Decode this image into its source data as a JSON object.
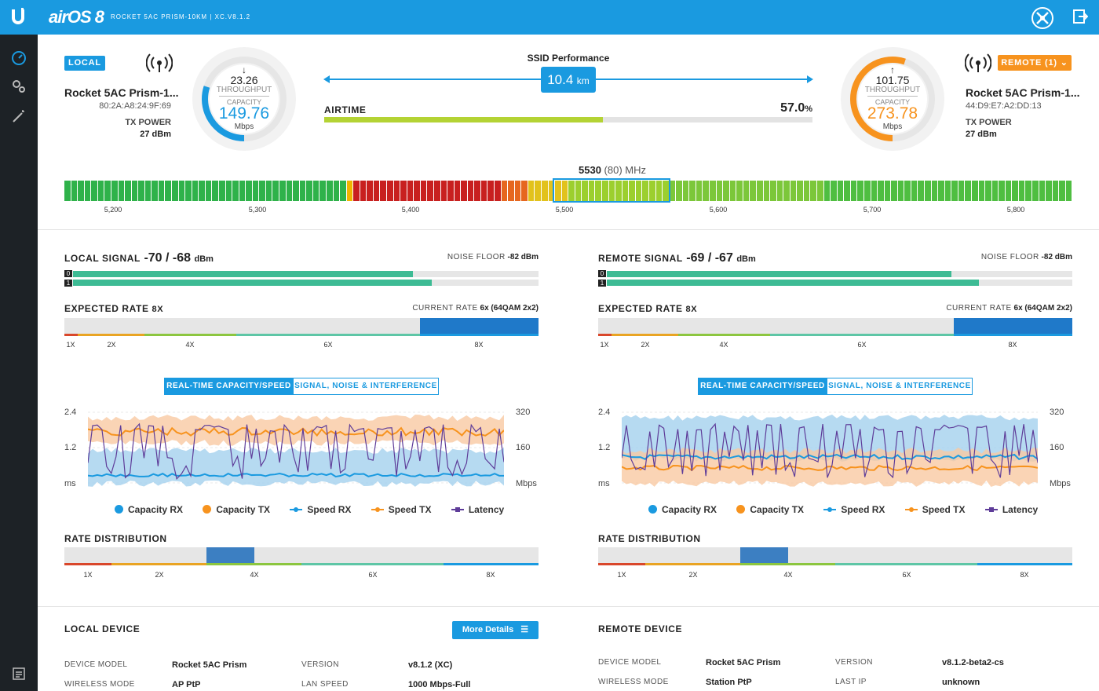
{
  "header": {
    "os_label": "airOS 8",
    "device_title": "ROCKET 5AC PRISM-10KM | XC.V8.1.2"
  },
  "icons": {
    "logo": "ubiquiti-u-icon",
    "tools": "tools-icon",
    "logout": "logout-icon",
    "sidebar": [
      "dashboard-icon",
      "settings-gears-icon",
      "wizard-wand-icon",
      "log-icon"
    ]
  },
  "colors": {
    "accent": "#1a9ae0",
    "remote": "#f7931e",
    "airtime": "#b4d334"
  },
  "local": {
    "badge": "LOCAL",
    "name": "Rocket 5AC Prism-1...",
    "mac": "80:2A:A8:24:9F:69",
    "txpower_label": "TX POWER",
    "txpower": "27 dBm",
    "throughput": "23.26",
    "throughput_label": "THROUGHPUT",
    "capacity_label": "CAPACITY",
    "capacity": "149.76",
    "unit": "Mbps",
    "capacity_fraction": 0.3
  },
  "remote": {
    "badge": "REMOTE (1)",
    "name": "Rocket 5AC Prism-1...",
    "mac": "44:D9:E7:A2:DD:13",
    "txpower_label": "TX POWER",
    "txpower": "27 dBm",
    "throughput": "101.75",
    "throughput_label": "THROUGHPUT",
    "capacity_label": "CAPACITY",
    "capacity": "273.78",
    "unit": "Mbps",
    "capacity_fraction": 0.55
  },
  "link": {
    "ssid_label": "SSID Performance",
    "distance": "10.4",
    "distance_unit": "km",
    "airtime_label": "AIRTIME",
    "airtime_value": "57.0",
    "airtime_unit": "%",
    "airtime_fraction": 0.57
  },
  "spectrum": {
    "freq": "5530",
    "width": "(80) MHz",
    "ticks": [
      "5,200",
      "5,300",
      "5,400",
      "5,500",
      "5,600",
      "5,700",
      "5,800"
    ]
  },
  "panels": [
    {
      "signal_label": "LOCAL SIGNAL",
      "signal_value": "-70 / -68",
      "signal_unit": "dBm",
      "noise_label": "NOISE FLOOR",
      "noise_value": "-82 dBm",
      "chain0": "0",
      "chain1": "1",
      "chain0_fraction": 0.73,
      "chain1_fraction": 0.77,
      "expected_label": "EXPECTED RATE",
      "expected_value": "8X",
      "current_label": "CURRENT RATE",
      "current_value": "6x (64QAM 2x2)",
      "rate_ticks": [
        "1X",
        "2X",
        "4X",
        "6X",
        "8X"
      ],
      "tab_active": "REAL-TIME CAPACITY/SPEED",
      "tab_other": "SIGNAL, NOISE & INTERFERENCE",
      "y_left": [
        "2.4",
        "1.2",
        "ms"
      ],
      "y_right": [
        "320",
        "160",
        "Mbps"
      ],
      "legend": [
        "Capacity RX",
        "Capacity TX",
        "Speed RX",
        "Speed TX",
        "Latency"
      ],
      "dist_label": "RATE DISTRIBUTION",
      "dist_ticks": [
        "1X",
        "2X",
        "4X",
        "6X",
        "8X"
      ]
    },
    {
      "signal_label": "REMOTE SIGNAL",
      "signal_value": "-69 / -67",
      "signal_unit": "dBm",
      "noise_label": "NOISE FLOOR",
      "noise_value": "-82 dBm",
      "chain0": "0",
      "chain1": "1",
      "chain0_fraction": 0.74,
      "chain1_fraction": 0.8,
      "expected_label": "EXPECTED RATE",
      "expected_value": "8X",
      "current_label": "CURRENT RATE",
      "current_value": "6x (64QAM 2x2)",
      "rate_ticks": [
        "1X",
        "2X",
        "4X",
        "6X",
        "8X"
      ],
      "tab_active": "REAL-TIME CAPACITY/SPEED",
      "tab_other": "SIGNAL, NOISE & INTERFERENCE",
      "y_left": [
        "2.4",
        "1.2",
        "ms"
      ],
      "y_right": [
        "320",
        "160",
        "Mbps"
      ],
      "legend": [
        "Capacity RX",
        "Capacity TX",
        "Speed RX",
        "Speed TX",
        "Latency"
      ],
      "dist_label": "RATE DISTRIBUTION",
      "dist_ticks": [
        "1X",
        "2X",
        "4X",
        "6X",
        "8X"
      ]
    }
  ],
  "local_device": {
    "title": "LOCAL DEVICE",
    "more_details": "More Details",
    "model_label": "DEVICE MODEL",
    "model": "Rocket 5AC Prism",
    "mode_label": "WIRELESS MODE",
    "mode": "AP PtP",
    "version_label": "VERSION",
    "version": "v8.1.2 (XC)",
    "lan_label": "LAN SPEED",
    "lan": "1000 Mbps-Full"
  },
  "remote_device": {
    "title": "REMOTE DEVICE",
    "model_label": "DEVICE MODEL",
    "model": "Rocket 5AC Prism",
    "mode_label": "WIRELESS MODE",
    "mode": "Station PtP",
    "version_label": "VERSION",
    "version": "v8.1.2-beta2-cs",
    "lastip_label": "LAST IP",
    "lastip": "unknown"
  }
}
